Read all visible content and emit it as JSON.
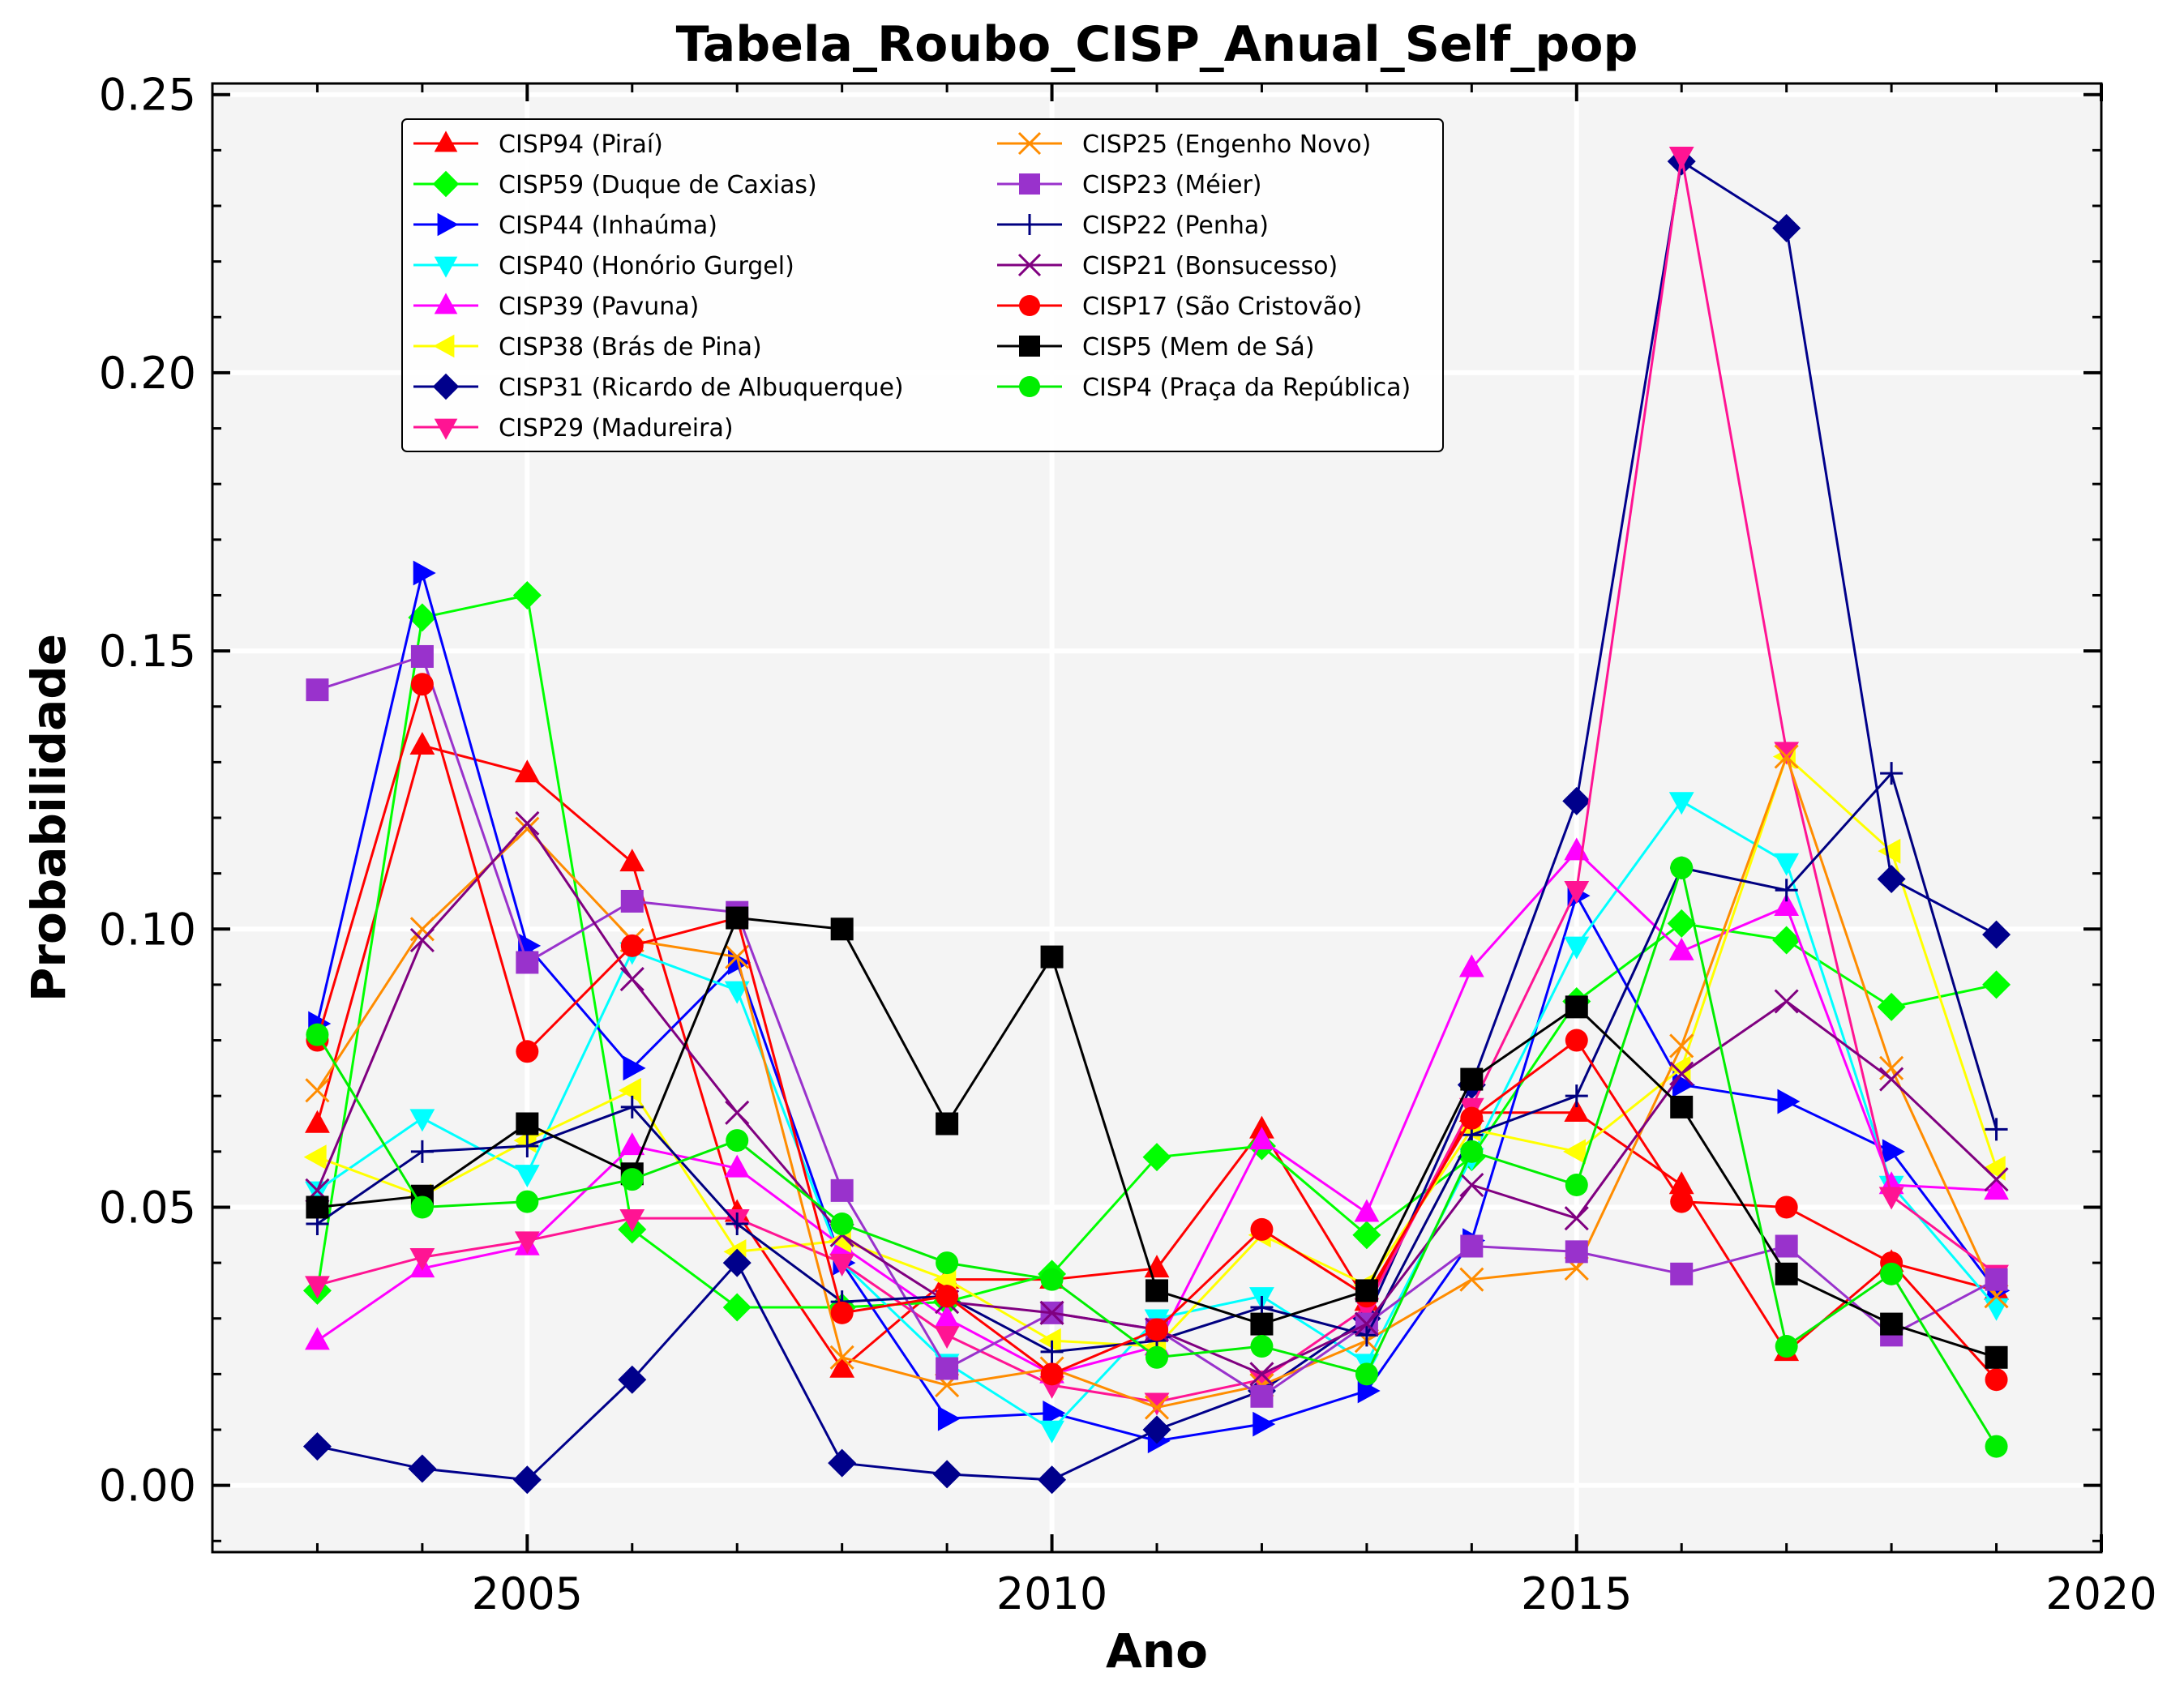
{
  "chart_data": {
    "type": "line",
    "title": "Tabela_Roubo_CISP_Anual_Self_pop",
    "xlabel": "Ano",
    "ylabel": "Probabilidade",
    "xlim": [
      2002,
      2020
    ],
    "ylim": [
      -0.012,
      0.252
    ],
    "xticks": [
      2005,
      2010,
      2015,
      2020
    ],
    "yticks": [
      0.0,
      0.05,
      0.1,
      0.15,
      0.2,
      0.25
    ],
    "yticklabels": [
      "0.00",
      "0.05",
      "0.10",
      "0.15",
      "0.20",
      "0.25"
    ],
    "grid": true,
    "legend": "upper-left, two columns",
    "x": [
      2003,
      2004,
      2005,
      2006,
      2007,
      2008,
      2009,
      2010,
      2011,
      2012,
      2013,
      2014,
      2015,
      2016,
      2017,
      2018,
      2019
    ],
    "series": [
      {
        "name": "CISP94 (Piraí)",
        "color": "#ff0000",
        "marker": "triangle-up",
        "values": [
          0.065,
          0.133,
          0.128,
          0.112,
          0.049,
          0.021,
          0.037,
          0.037,
          0.039,
          0.064,
          0.033,
          0.067,
          0.067,
          0.054,
          0.024,
          0.04,
          0.035
        ]
      },
      {
        "name": "CISP59 (Duque de Caxias)",
        "color": "#00ff00",
        "marker": "diamond",
        "values": [
          0.035,
          0.156,
          0.16,
          0.046,
          0.032,
          0.032,
          0.033,
          0.038,
          0.059,
          0.061,
          0.045,
          0.059,
          0.087,
          0.101,
          0.098,
          0.086,
          0.09
        ]
      },
      {
        "name": "CISP44 (Inhaúma)",
        "color": "#0000ff",
        "marker": "triangle-right",
        "values": [
          0.083,
          0.164,
          0.097,
          0.075,
          0.094,
          0.04,
          0.012,
          0.013,
          0.008,
          0.011,
          0.017,
          0.044,
          0.106,
          0.072,
          0.069,
          0.06,
          0.035
        ]
      },
      {
        "name": "CISP40 (Honório Gurgel)",
        "color": "#00ffff",
        "marker": "triangle-down",
        "values": [
          0.053,
          0.066,
          0.056,
          0.096,
          0.089,
          0.04,
          0.022,
          0.01,
          0.03,
          0.034,
          0.022,
          0.059,
          0.097,
          0.123,
          0.112,
          0.054,
          0.032
        ]
      },
      {
        "name": "CISP39 (Pavuna)",
        "color": "#ff00ff",
        "marker": "triangle-up",
        "values": [
          0.026,
          0.039,
          0.043,
          0.061,
          0.057,
          0.043,
          0.03,
          0.02,
          0.025,
          0.062,
          0.049,
          0.093,
          0.114,
          0.096,
          0.104,
          0.054,
          0.053
        ]
      },
      {
        "name": "CISP38 (Brás de Pina)",
        "color": "#ffff00",
        "marker": "triangle-left",
        "values": [
          0.059,
          0.052,
          0.062,
          0.071,
          0.042,
          0.044,
          0.037,
          0.026,
          0.025,
          0.045,
          0.036,
          0.064,
          0.06,
          0.075,
          0.131,
          0.114,
          0.057
        ]
      },
      {
        "name": "CISP31 (Ricardo de Albuquerque)",
        "color": "#00008b",
        "marker": "diamond",
        "values": [
          0.007,
          0.003,
          0.001,
          0.019,
          0.04,
          0.004,
          0.002,
          0.001,
          0.01,
          0.017,
          0.03,
          0.072,
          0.123,
          0.238,
          0.226,
          0.109,
          0.099
        ]
      },
      {
        "name": "CISP29 (Madureira)",
        "color": "#ff1493",
        "marker": "triangle-down",
        "values": [
          0.036,
          0.041,
          0.044,
          0.048,
          0.048,
          0.04,
          0.027,
          0.018,
          0.015,
          0.019,
          0.032,
          0.068,
          0.107,
          0.239,
          0.132,
          0.052,
          0.038
        ]
      },
      {
        "name": "CISP25 (Engenho Novo)",
        "color": "#ff8c00",
        "marker": "x",
        "values": [
          0.071,
          0.1,
          0.118,
          0.098,
          0.095,
          0.023,
          0.018,
          0.021,
          0.014,
          0.018,
          0.026,
          0.037,
          0.039,
          0.079,
          0.131,
          0.075,
          0.034
        ]
      },
      {
        "name": "CISP23 (Méier)",
        "color": "#9932cc",
        "marker": "square",
        "values": [
          0.143,
          0.149,
          0.094,
          0.105,
          0.103,
          0.053,
          0.021,
          0.031,
          0.028,
          0.016,
          0.029,
          0.043,
          0.042,
          0.038,
          0.043,
          0.027,
          0.037
        ]
      },
      {
        "name": "CISP22 (Penha)",
        "color": "#000080",
        "marker": "plus",
        "values": [
          0.047,
          0.06,
          0.061,
          0.068,
          0.047,
          0.033,
          0.034,
          0.024,
          0.026,
          0.032,
          0.027,
          0.063,
          0.07,
          0.111,
          0.107,
          0.128,
          0.064
        ]
      },
      {
        "name": "CISP21 (Bonsucesso)",
        "color": "#800080",
        "marker": "x",
        "values": [
          0.053,
          0.098,
          0.119,
          0.091,
          0.067,
          0.045,
          0.033,
          0.031,
          0.028,
          0.02,
          0.029,
          0.054,
          0.048,
          0.074,
          0.087,
          0.073,
          0.055
        ]
      },
      {
        "name": "CISP17 (São Cristovão)",
        "color": "#ff0000",
        "marker": "circle",
        "values": [
          0.08,
          0.144,
          0.078,
          0.097,
          0.102,
          0.031,
          0.034,
          0.02,
          0.028,
          0.046,
          0.034,
          0.066,
          0.08,
          0.051,
          0.05,
          0.04,
          0.019
        ]
      },
      {
        "name": "CISP5 (Mem de Sá)",
        "color": "#000000",
        "marker": "square",
        "values": [
          0.05,
          0.052,
          0.065,
          0.056,
          0.102,
          0.1,
          0.065,
          0.095,
          0.035,
          0.029,
          0.035,
          0.073,
          0.086,
          0.068,
          0.038,
          0.029,
          0.023
        ]
      },
      {
        "name": "CISP4 (Praça da República)",
        "color": "#00ee00",
        "marker": "circle",
        "values": [
          0.081,
          0.05,
          0.051,
          0.055,
          0.062,
          0.047,
          0.04,
          0.037,
          0.023,
          0.025,
          0.02,
          0.06,
          0.054,
          0.111,
          0.025,
          0.038,
          0.007
        ]
      }
    ]
  }
}
